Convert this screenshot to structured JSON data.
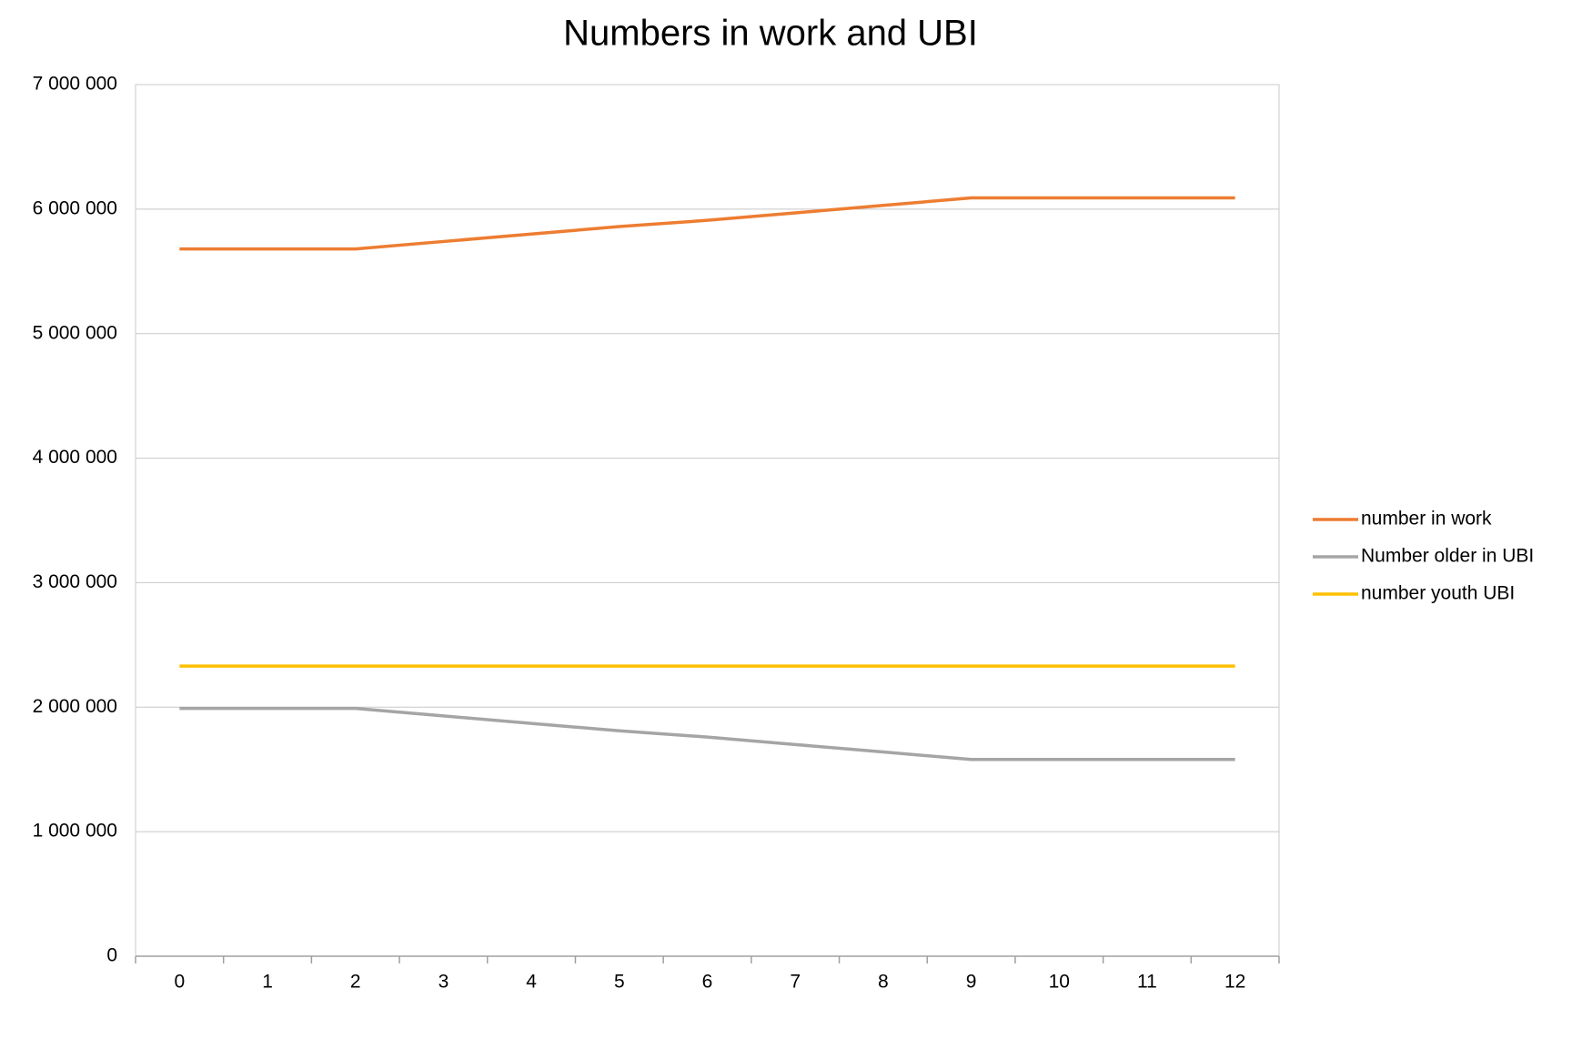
{
  "chart_data": {
    "type": "line",
    "title": "Numbers in work and UBI",
    "x": [
      0,
      1,
      2,
      3,
      4,
      5,
      6,
      7,
      8,
      9,
      10,
      11,
      12
    ],
    "xlim": [
      -0.5,
      12.5
    ],
    "xticks": [
      0,
      1,
      2,
      3,
      4,
      5,
      6,
      7,
      8,
      9,
      10,
      11,
      12
    ],
    "ylim": [
      0,
      7000000
    ],
    "yticks": [
      0,
      {
        "value": 1000000,
        "label": "1 000 000"
      },
      {
        "value": 2000000,
        "label": "2 000 000"
      },
      {
        "value": 3000000,
        "label": "3 000 000"
      },
      {
        "value": 4000000,
        "label": "4 000 000"
      },
      {
        "value": 5000000,
        "label": "5 000 000"
      },
      {
        "value": 6000000,
        "label": "6 000 000"
      },
      {
        "value": 7000000,
        "label": "7 000 000"
      }
    ],
    "grid": true,
    "legend": "right",
    "series": [
      {
        "name": "number in work",
        "color": "#ed7d31",
        "values": [
          5680000,
          5680000,
          5680000,
          5740000,
          5800000,
          5860000,
          5910000,
          5970000,
          6030000,
          6090000,
          6090000,
          6090000,
          6090000
        ]
      },
      {
        "name": "Number older in UBI",
        "color": "#a5a5a5",
        "values": [
          1990000,
          1990000,
          1990000,
          1930000,
          1870000,
          1810000,
          1760000,
          1700000,
          1640000,
          1580000,
          1580000,
          1580000,
          1580000
        ]
      },
      {
        "name": "number youth UBI",
        "color": "#ffc000",
        "values": [
          2330000,
          2330000,
          2330000,
          2330000,
          2330000,
          2330000,
          2330000,
          2330000,
          2330000,
          2330000,
          2330000,
          2330000,
          2330000
        ]
      }
    ]
  }
}
